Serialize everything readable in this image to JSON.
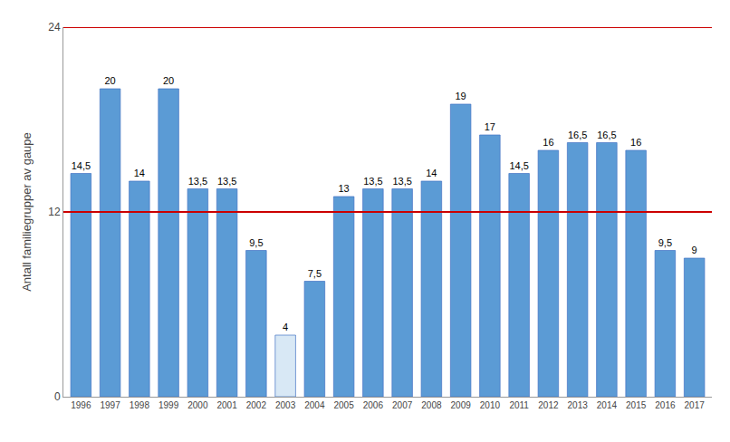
{
  "chart_data": {
    "type": "bar",
    "categories": [
      "1996",
      "1997",
      "1998",
      "1999",
      "2000",
      "2001",
      "2002",
      "2003",
      "2004",
      "2005",
      "2006",
      "2007",
      "2008",
      "2009",
      "2010",
      "2011",
      "2012",
      "2013",
      "2014",
      "2015",
      "2016",
      "2017"
    ],
    "values": [
      14.5,
      20,
      14,
      20,
      13.5,
      13.5,
      9.5,
      4,
      7.5,
      13,
      13.5,
      13.5,
      14,
      19,
      17,
      14.5,
      16,
      16.5,
      16.5,
      16,
      9.5,
      9
    ],
    "value_labels": [
      "14,5",
      "20",
      "14",
      "20",
      "13,5",
      "13,5",
      "9,5",
      "4",
      "7,5",
      "13",
      "13,5",
      "13,5",
      "14",
      "19",
      "17",
      "14,5",
      "16",
      "16,5",
      "16,5",
      "16",
      "9,5",
      "9"
    ],
    "colors": [
      "#5B9BD5",
      "#5B9BD5",
      "#5B9BD5",
      "#5B9BD5",
      "#5B9BD5",
      "#5B9BD5",
      "#5B9BD5",
      "#D8E8F5",
      "#5B9BD5",
      "#5B9BD5",
      "#5B9BD5",
      "#5B9BD5",
      "#5B9BD5",
      "#5B9BD5",
      "#5B9BD5",
      "#5B9BD5",
      "#5B9BD5",
      "#5B9BD5",
      "#5B9BD5",
      "#5B9BD5",
      "#5B9BD5",
      "#5B9BD5"
    ],
    "ylabel": "Antall familiegrupper av gaupe",
    "ylim": [
      0,
      24
    ],
    "yticks": [
      0,
      12,
      24
    ],
    "hlines": [
      {
        "value": 12,
        "color": "#CC0000"
      },
      {
        "value": 24,
        "color": "#CC0000"
      }
    ],
    "grid": false,
    "data_labels": true
  }
}
